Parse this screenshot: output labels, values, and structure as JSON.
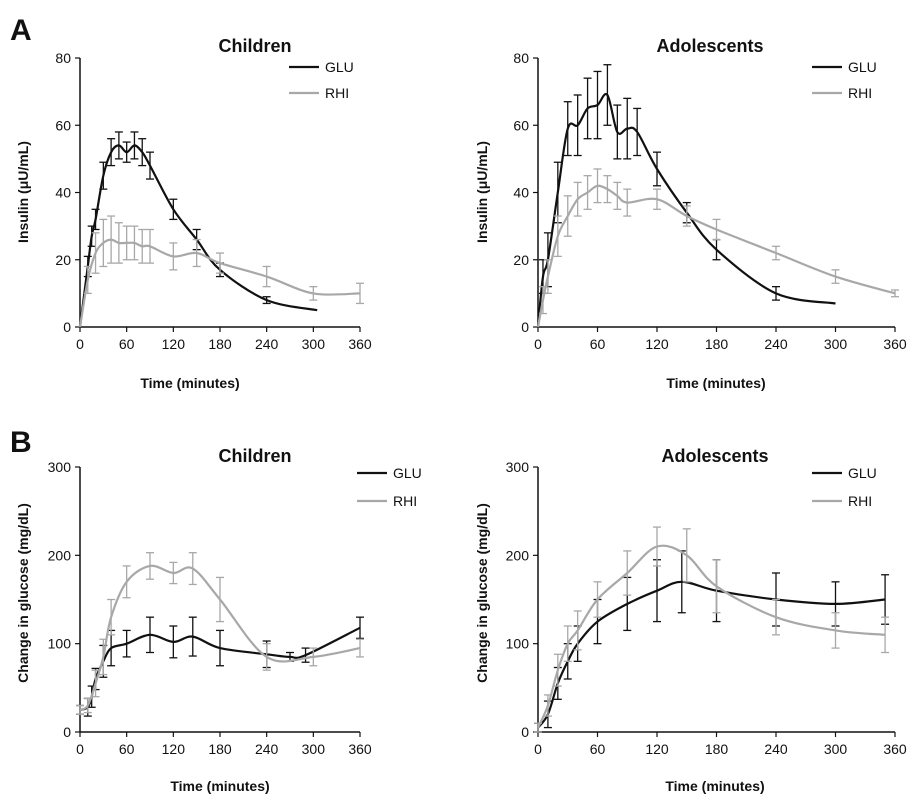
{
  "panel_labels": [
    "A",
    "B"
  ],
  "colors": {
    "GLU": "#111111",
    "RHI": "#a8a8a8"
  },
  "chart_data": [
    {
      "panel": "A",
      "type": "line",
      "title": "Children",
      "xlabel": "Time (minutes)",
      "ylabel": "Insulin (μU/mL)",
      "xlim": [
        0,
        360
      ],
      "ylim": [
        0,
        80
      ],
      "xticks": [
        0,
        60,
        120,
        180,
        240,
        300,
        360
      ],
      "yticks": [
        0,
        20,
        40,
        60,
        80
      ],
      "grid": false,
      "legend": "top-right",
      "series": [
        {
          "name": "GLU",
          "color": "#111111",
          "x": [
            0,
            10,
            15,
            20,
            30,
            40,
            50,
            60,
            70,
            80,
            90,
            120,
            150,
            180,
            240,
            305
          ],
          "y": [
            0,
            18,
            27,
            32,
            45,
            52,
            54,
            52,
            54,
            52,
            48,
            35,
            26,
            17,
            8,
            5
          ],
          "err": [
            0,
            3,
            3,
            3,
            4,
            4,
            4,
            3,
            4,
            4,
            4,
            3,
            3,
            2,
            1,
            0
          ]
        },
        {
          "name": "RHI",
          "color": "#a8a8a8",
          "x": [
            0,
            10,
            20,
            30,
            40,
            50,
            60,
            70,
            80,
            90,
            120,
            150,
            180,
            240,
            300,
            360
          ],
          "y": [
            0,
            14,
            22,
            25,
            26,
            25,
            25,
            25,
            24,
            24,
            21,
            22,
            19,
            15,
            10,
            10
          ],
          "err": [
            0,
            4,
            6,
            7,
            7,
            6,
            5,
            5,
            5,
            5,
            4,
            4,
            3,
            3,
            2,
            3
          ]
        }
      ]
    },
    {
      "panel": "A",
      "type": "line",
      "title": "Adolescents",
      "xlabel": "Time (minutes)",
      "ylabel": "Insulin (μU/mL)",
      "xlim": [
        0,
        360
      ],
      "ylim": [
        0,
        80
      ],
      "xticks": [
        0,
        60,
        120,
        180,
        240,
        300,
        360
      ],
      "yticks": [
        0,
        20,
        40,
        60,
        80
      ],
      "grid": false,
      "legend": "top-right",
      "series": [
        {
          "name": "GLU",
          "color": "#111111",
          "x": [
            0,
            5,
            10,
            20,
            30,
            40,
            50,
            60,
            70,
            80,
            90,
            100,
            120,
            150,
            180,
            240,
            300
          ],
          "y": [
            0,
            15,
            20,
            40,
            59,
            60,
            65,
            66,
            69,
            58,
            59,
            58,
            47,
            34,
            23,
            10,
            7
          ],
          "err": [
            0,
            5,
            8,
            9,
            8,
            9,
            9,
            10,
            9,
            8,
            9,
            7,
            5,
            3,
            3,
            2,
            0
          ]
        },
        {
          "name": "RHI",
          "color": "#a8a8a8",
          "x": [
            0,
            5,
            10,
            20,
            30,
            40,
            50,
            60,
            70,
            80,
            90,
            120,
            150,
            180,
            240,
            300,
            360
          ],
          "y": [
            0,
            8,
            15,
            27,
            33,
            38,
            40,
            42,
            41,
            39,
            37,
            38,
            33,
            29,
            22,
            15,
            10
          ],
          "err": [
            0,
            4,
            5,
            6,
            6,
            5,
            5,
            5,
            4,
            4,
            4,
            3,
            3,
            3,
            2,
            2,
            1
          ]
        }
      ]
    },
    {
      "panel": "B",
      "type": "line",
      "title": "Children",
      "xlabel": "Time (minutes)",
      "ylabel": "Change in glucose (mg/dL)",
      "xlim": [
        0,
        360
      ],
      "ylim": [
        0,
        300
      ],
      "xticks": [
        0,
        60,
        120,
        180,
        240,
        300,
        360
      ],
      "yticks": [
        0,
        100,
        200,
        300
      ],
      "grid": false,
      "legend": "top-right",
      "series": [
        {
          "name": "GLU",
          "color": "#111111",
          "x": [
            0,
            10,
            15,
            20,
            30,
            40,
            60,
            90,
            120,
            145,
            180,
            240,
            270,
            290,
            360
          ],
          "y": [
            25,
            28,
            40,
            60,
            80,
            95,
            100,
            110,
            102,
            108,
            95,
            88,
            85,
            87,
            118
          ],
          "err": [
            5,
            10,
            12,
            12,
            18,
            20,
            15,
            20,
            18,
            22,
            20,
            15,
            5,
            8,
            12
          ]
        },
        {
          "name": "RHI",
          "color": "#a8a8a8",
          "x": [
            0,
            10,
            20,
            30,
            40,
            60,
            90,
            120,
            145,
            180,
            240,
            300,
            360
          ],
          "y": [
            25,
            30,
            55,
            85,
            130,
            170,
            188,
            180,
            185,
            150,
            85,
            85,
            95
          ],
          "err": [
            5,
            8,
            15,
            20,
            20,
            18,
            15,
            12,
            18,
            25,
            15,
            10,
            10
          ]
        }
      ]
    },
    {
      "panel": "B",
      "type": "line",
      "title": "Adolescents",
      "xlabel": "Time (minutes)",
      "ylabel": "Change in glucose (mg/dL)",
      "xlim": [
        0,
        360
      ],
      "ylim": [
        0,
        300
      ],
      "xticks": [
        0,
        60,
        120,
        180,
        240,
        300,
        360
      ],
      "yticks": [
        0,
        100,
        200,
        300
      ],
      "grid": false,
      "legend": "top-right",
      "series": [
        {
          "name": "GLU",
          "color": "#111111",
          "x": [
            0,
            10,
            20,
            30,
            40,
            60,
            90,
            120,
            145,
            180,
            240,
            300,
            350
          ],
          "y": [
            5,
            20,
            55,
            80,
            100,
            125,
            145,
            160,
            170,
            160,
            150,
            145,
            150
          ],
          "err": [
            5,
            15,
            18,
            20,
            20,
            25,
            30,
            35,
            35,
            35,
            30,
            25,
            28
          ]
        },
        {
          "name": "RHI",
          "color": "#a8a8a8",
          "x": [
            0,
            10,
            20,
            30,
            40,
            60,
            90,
            120,
            150,
            180,
            240,
            300,
            350
          ],
          "y": [
            5,
            30,
            70,
            100,
            115,
            150,
            180,
            210,
            200,
            165,
            130,
            115,
            110
          ],
          "err": [
            5,
            12,
            18,
            20,
            22,
            20,
            25,
            22,
            30,
            30,
            20,
            20,
            20
          ]
        }
      ]
    }
  ]
}
